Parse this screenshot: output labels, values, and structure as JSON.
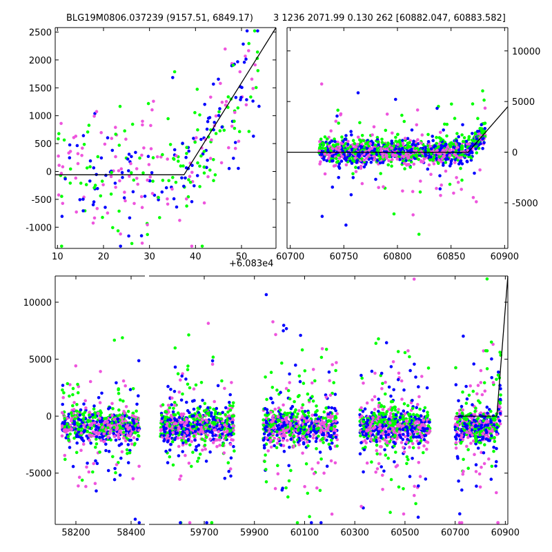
{
  "figure": {
    "title_left": "BLG19M0806.037239 (9157.51, 6849.17)",
    "title_right": "3 1236 2071.99 0.130 262 [60882.047, 60883.582]",
    "colors": {
      "green": "#00ff00",
      "blue": "#0000ff",
      "pink": "#ee55dd",
      "model": "#000000"
    }
  },
  "chart_data": [
    {
      "type": "scatter",
      "panel": "top-left",
      "x_offset_label": "+6.083e4",
      "xlim": [
        9.5,
        57.5
      ],
      "ylim": [
        -1380,
        2580
      ],
      "xticks": [
        10,
        20,
        30,
        40,
        50
      ],
      "yticks": [
        -1000,
        -500,
        0,
        500,
        1000,
        1500,
        2000,
        2500
      ],
      "ytick_side": "left",
      "model": {
        "x": [
          9.5,
          37.5,
          57.5
        ],
        "y": [
          -60,
          -60,
          2580
        ]
      },
      "data_range": {
        "x": [
          10,
          54
        ],
        "y_low": [
          -1300,
          1300
        ],
        "y_rise_end": 2400
      }
    },
    {
      "type": "scatter",
      "panel": "top-right",
      "xlim": [
        60697,
        60903
      ],
      "ylim": [
        -9500,
        12300
      ],
      "xticks": [
        60700,
        60750,
        60800,
        60850,
        60900
      ],
      "yticks": [
        -5000,
        0,
        5000,
        10000
      ],
      "ytick_side": "right",
      "model": {
        "x": [
          60697,
          60866,
          60903
        ],
        "y": [
          0,
          0,
          4500
        ]
      },
      "data_range": {
        "x": [
          60727,
          60882
        ]
      }
    },
    {
      "type": "scatter",
      "panel": "bottom",
      "broken_x_axis": true,
      "ylim": [
        -9500,
        12300
      ],
      "yticks": [
        -5000,
        0,
        5000,
        10000
      ],
      "ytick_side": "left",
      "segments": [
        {
          "xlim": [
            58125,
            58450
          ],
          "xticks": [
            58200,
            58400
          ],
          "data_x": [
            58150,
            58430
          ]
        },
        {
          "xlim": [
            59480,
            60910
          ],
          "xticks": [
            59700,
            59900,
            60100,
            60300,
            60500,
            60700,
            60900
          ],
          "clusters": [
            [
              59525,
              59820
            ],
            [
              59935,
              60230
            ],
            [
              60320,
              60600
            ],
            [
              60700,
              60882
            ]
          ]
        }
      ],
      "model": {
        "x": [
          60700,
          60866,
          60910
        ],
        "y": [
          0,
          0,
          12300
        ]
      }
    }
  ]
}
